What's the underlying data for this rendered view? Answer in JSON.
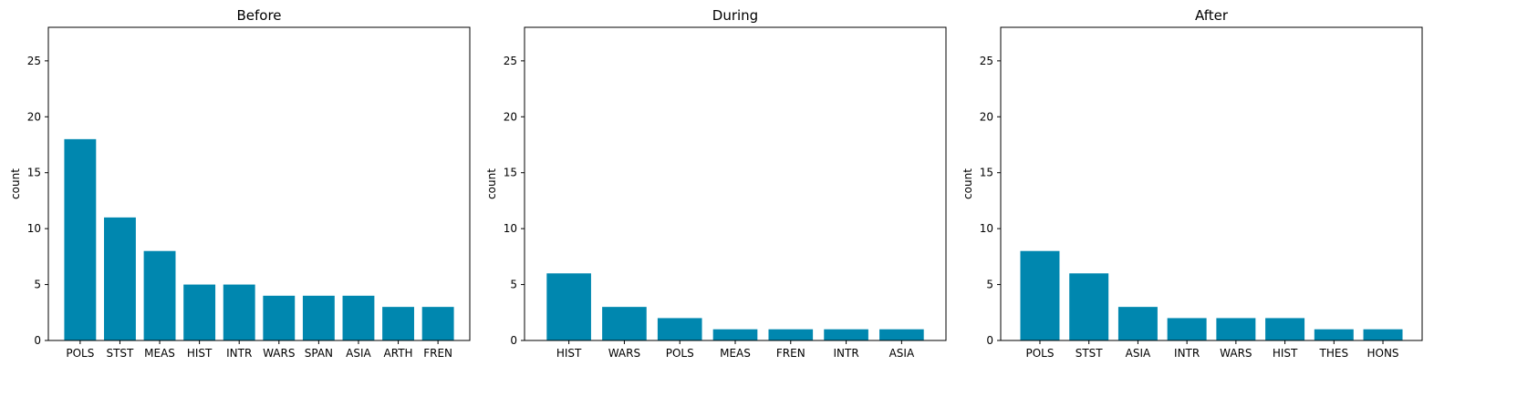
{
  "chart_data": [
    {
      "type": "bar",
      "title": "Before",
      "ylabel": "count",
      "xlabel": "",
      "ylim": [
        0,
        28
      ],
      "yticks": [
        0,
        5,
        10,
        15,
        20,
        25
      ],
      "categories": [
        "POLS",
        "STST",
        "MEAS",
        "HIST",
        "INTR",
        "WARS",
        "SPAN",
        "ASIA",
        "ARTH",
        "FREN"
      ],
      "values": [
        18,
        11,
        8,
        5,
        5,
        4,
        4,
        4,
        3,
        3
      ],
      "bar_color": "#0087AF",
      "grid": false
    },
    {
      "type": "bar",
      "title": "During",
      "ylabel": "count",
      "xlabel": "",
      "ylim": [
        0,
        28
      ],
      "yticks": [
        0,
        5,
        10,
        15,
        20,
        25
      ],
      "categories": [
        "HIST",
        "WARS",
        "POLS",
        "MEAS",
        "FREN",
        "INTR",
        "ASIA"
      ],
      "values": [
        6,
        3,
        2,
        1,
        1,
        1,
        1
      ],
      "bar_color": "#0087AF",
      "grid": false
    },
    {
      "type": "bar",
      "title": "After",
      "ylabel": "count",
      "xlabel": "",
      "ylim": [
        0,
        28
      ],
      "yticks": [
        0,
        5,
        10,
        15,
        20,
        25
      ],
      "categories": [
        "POLS",
        "STST",
        "ASIA",
        "INTR",
        "WARS",
        "HIST",
        "THES",
        "HONS"
      ],
      "values": [
        8,
        6,
        3,
        2,
        2,
        2,
        1,
        1
      ],
      "bar_color": "#0087AF",
      "grid": false
    }
  ]
}
